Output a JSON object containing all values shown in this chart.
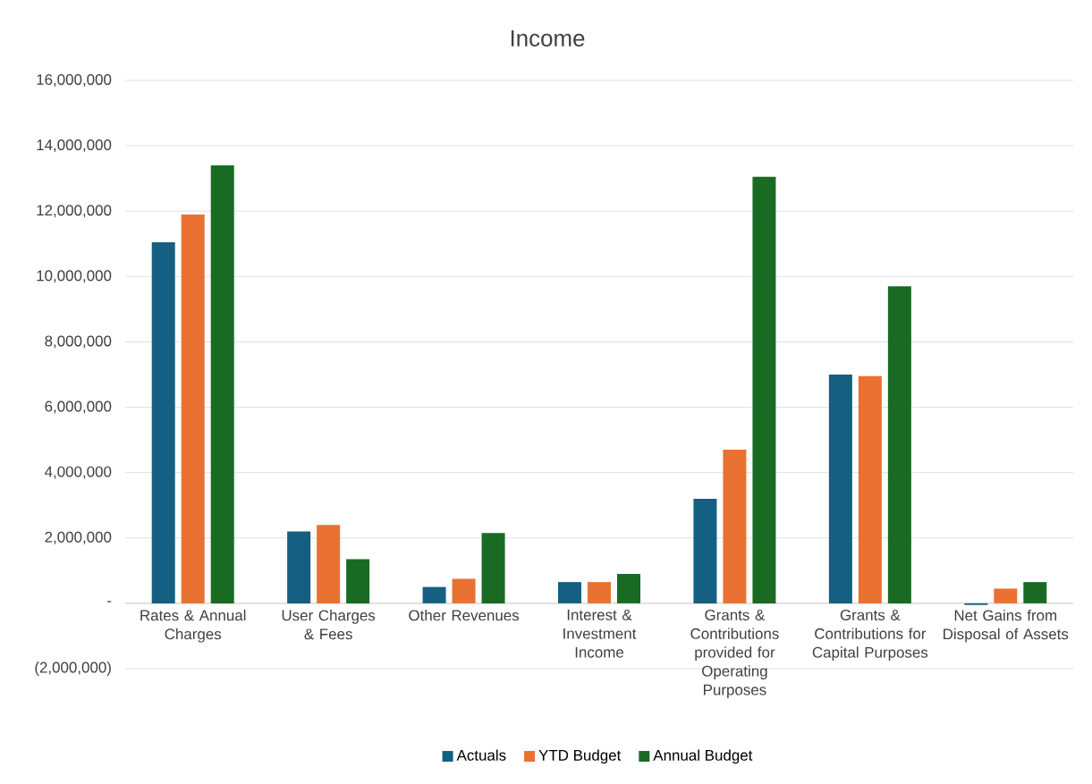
{
  "chart_data": {
    "type": "bar",
    "title": "Income",
    "categories": [
      "Rates & Annual Charges",
      "User Charges & Fees",
      "Other Revenues",
      "Interest & Investment Income",
      "Grants & Contributions provided for Operating Purposes",
      "Grants & Contributions for Capital Purposes",
      "Net Gains from Disposal of Assets"
    ],
    "series": [
      {
        "name": "Actuals",
        "color": "#156082",
        "values": [
          11050000,
          2200000,
          500000,
          650000,
          3200000,
          7000000,
          -50000
        ]
      },
      {
        "name": "YTD Budget",
        "color": "#e97132",
        "values": [
          11900000,
          2400000,
          750000,
          650000,
          4700000,
          6950000,
          450000
        ]
      },
      {
        "name": "Annual Budget",
        "color": "#196b24",
        "values": [
          13400000,
          1350000,
          2150000,
          900000,
          13050000,
          9700000,
          650000
        ]
      }
    ],
    "ylim": [
      -2000000,
      16000000
    ],
    "yticks": [
      {
        "value": -2000000,
        "label": "(2,000,000)"
      },
      {
        "value": 0,
        "label": "-"
      },
      {
        "value": 2000000,
        "label": "2,000,000"
      },
      {
        "value": 4000000,
        "label": "4,000,000"
      },
      {
        "value": 6000000,
        "label": "6,000,000"
      },
      {
        "value": 8000000,
        "label": "8,000,000"
      },
      {
        "value": 10000000,
        "label": "10,000,000"
      },
      {
        "value": 12000000,
        "label": "12,000,000"
      },
      {
        "value": 14000000,
        "label": "14,000,000"
      },
      {
        "value": 16000000,
        "label": "16,000,000"
      }
    ],
    "grid": "y",
    "legend": "bottom"
  }
}
